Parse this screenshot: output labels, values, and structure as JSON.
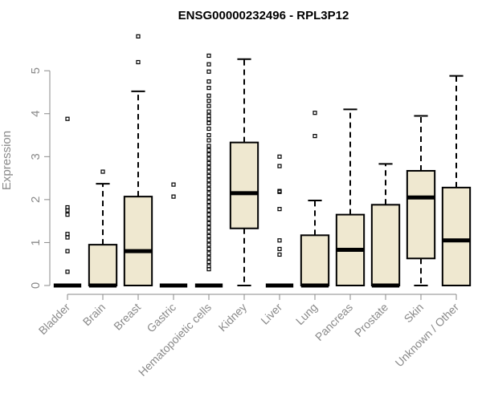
{
  "chart_data": {
    "type": "boxplot",
    "title": "ENSG00000232496 - RPL3P12",
    "xlabel": "",
    "ylabel": "Expression",
    "ylim": [
      0,
      5.9
    ],
    "yticks": [
      0,
      1,
      2,
      3,
      4,
      5
    ],
    "grid": false,
    "legend": "none",
    "colors": {
      "box_fill": "#efe8d0",
      "stroke": "#000000",
      "axis": "#8a8a8a"
    },
    "categories": [
      "Bladder",
      "Brain",
      "Breast",
      "Gastric",
      "Hematopoietic cells",
      "Kidney",
      "Liver",
      "Lung",
      "Pancreas",
      "Prostate",
      "Skin",
      "Unknown / Other"
    ],
    "boxes": [
      {
        "category": "Bladder",
        "min": 0,
        "q1": 0,
        "median": 0,
        "q3": 0,
        "max": 0,
        "outliers": [
          3.88,
          1.82,
          1.75,
          1.65,
          1.2,
          1.12,
          0.8,
          0.32
        ]
      },
      {
        "category": "Brain",
        "min": 0,
        "q1": 0,
        "median": 0,
        "q3": 0.95,
        "max": 2.37,
        "outliers": [
          2.65
        ]
      },
      {
        "category": "Breast",
        "min": 0,
        "q1": 0,
        "median": 0.8,
        "q3": 2.07,
        "max": 4.52,
        "outliers": [
          5.2,
          5.8
        ]
      },
      {
        "category": "Gastric",
        "min": 0,
        "q1": 0,
        "median": 0,
        "q3": 0,
        "max": 0,
        "outliers": [
          2.35,
          2.07
        ]
      },
      {
        "category": "Hematopoietic cells",
        "min": 0,
        "q1": 0,
        "median": 0,
        "q3": 0,
        "max": 0,
        "outliers": [
          5.35,
          5.15,
          4.98,
          4.75,
          4.6,
          4.42,
          4.3,
          4.18,
          4.05,
          3.95,
          3.87,
          3.78,
          3.65,
          3.5,
          3.38,
          3.25,
          3.15,
          3.05,
          2.95,
          2.85,
          2.75,
          2.65,
          2.55,
          2.45,
          2.35,
          2.25,
          2.15,
          2.05,
          1.95,
          1.85,
          1.75,
          1.65,
          1.55,
          1.45,
          1.35,
          1.25,
          1.15,
          1.05,
          0.95,
          0.85,
          0.75,
          0.65,
          0.55,
          0.45,
          0.38
        ]
      },
      {
        "category": "Kidney",
        "min": 0,
        "q1": 1.33,
        "median": 2.15,
        "q3": 3.33,
        "max": 5.27,
        "outliers": []
      },
      {
        "category": "Liver",
        "min": 0,
        "q1": 0,
        "median": 0,
        "q3": 0,
        "max": 0,
        "outliers": [
          3.0,
          2.78,
          2.2,
          2.18,
          1.78,
          1.05,
          0.85,
          0.72
        ]
      },
      {
        "category": "Lung",
        "min": 0,
        "q1": 0,
        "median": 0,
        "q3": 1.17,
        "max": 1.98,
        "outliers": [
          4.02,
          3.48
        ]
      },
      {
        "category": "Pancreas",
        "min": 0,
        "q1": 0,
        "median": 0.83,
        "q3": 1.65,
        "max": 4.1,
        "outliers": []
      },
      {
        "category": "Prostate",
        "min": 0,
        "q1": 0,
        "median": 0,
        "q3": 1.88,
        "max": 2.83,
        "outliers": []
      },
      {
        "category": "Skin",
        "min": 0,
        "q1": 0.63,
        "median": 2.05,
        "q3": 2.67,
        "max": 3.95,
        "outliers": []
      },
      {
        "category": "Unknown / Other",
        "min": 0,
        "q1": 0,
        "median": 1.05,
        "q3": 2.28,
        "max": 4.88,
        "outliers": []
      }
    ]
  }
}
